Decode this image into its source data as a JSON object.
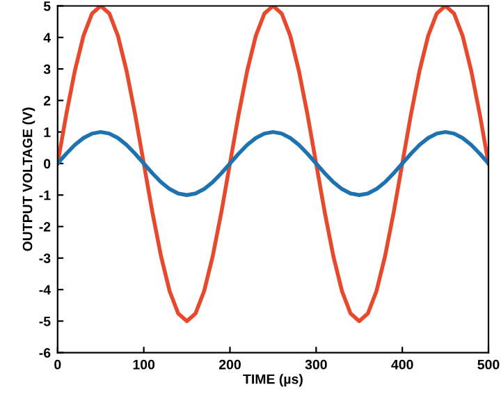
{
  "chart_data": {
    "type": "line",
    "xlabel": "TIME (µs)",
    "ylabel": "OUTPUT VOLTAGE (V)",
    "x": [
      0,
      10,
      20,
      30,
      40,
      50,
      60,
      70,
      80,
      90,
      100,
      110,
      120,
      130,
      140,
      150,
      160,
      170,
      180,
      190,
      200,
      210,
      220,
      230,
      240,
      250,
      260,
      270,
      280,
      290,
      300,
      310,
      320,
      330,
      340,
      350,
      360,
      370,
      380,
      390,
      400,
      410,
      420,
      430,
      440,
      450,
      460,
      470,
      480,
      490,
      500
    ],
    "series": [
      {
        "color": "#e8482c",
        "values": [
          0,
          1.55,
          2.94,
          4.05,
          4.76,
          5,
          4.76,
          4.05,
          2.94,
          1.55,
          0,
          -1.55,
          -2.94,
          -4.05,
          -4.76,
          -5,
          -4.76,
          -4.05,
          -2.94,
          -1.55,
          0,
          1.55,
          2.94,
          4.05,
          4.76,
          5,
          4.76,
          4.05,
          2.94,
          1.55,
          0,
          -1.55,
          -2.94,
          -4.05,
          -4.76,
          -5,
          -4.76,
          -4.05,
          -2.94,
          -1.55,
          0,
          1.55,
          2.94,
          4.05,
          4.76,
          5,
          4.76,
          4.05,
          2.94,
          1.55,
          0
        ]
      },
      {
        "color": "#1f72b0",
        "values": [
          0,
          0.31,
          0.59,
          0.81,
          0.95,
          1,
          0.95,
          0.81,
          0.59,
          0.31,
          0,
          -0.31,
          -0.59,
          -0.81,
          -0.95,
          -1,
          -0.95,
          -0.81,
          -0.59,
          -0.31,
          0,
          0.31,
          0.59,
          0.81,
          0.95,
          1,
          0.95,
          0.81,
          0.59,
          0.31,
          0,
          -0.31,
          -0.59,
          -0.81,
          -0.95,
          -1,
          -0.95,
          -0.81,
          -0.59,
          -0.31,
          0,
          0.31,
          0.59,
          0.81,
          0.95,
          1,
          0.95,
          0.81,
          0.59,
          0.31,
          0
        ]
      }
    ],
    "xlim": [
      0,
      500
    ],
    "xticks": [
      0,
      100,
      200,
      300,
      400,
      500
    ],
    "ylim": [
      -6,
      5
    ],
    "yticks": [
      -6,
      -5,
      -4,
      -3,
      -2,
      -1,
      0,
      1,
      2,
      3,
      4,
      5
    ],
    "grid": false,
    "legend": false,
    "marker": "none",
    "line_style": "solid"
  }
}
